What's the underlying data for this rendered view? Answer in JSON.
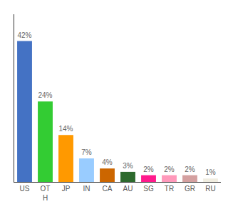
{
  "chart_data": {
    "type": "bar",
    "categories": [
      "US",
      "OT\nH",
      "JP",
      "IN",
      "CA",
      "AU",
      "SG",
      "TR",
      "GR",
      "RU"
    ],
    "values": [
      42,
      24,
      14,
      7,
      4,
      3,
      2,
      2,
      2,
      1
    ],
    "value_labels": [
      "42%",
      "24%",
      "14%",
      "7%",
      "4%",
      "3%",
      "2%",
      "2%",
      "2%",
      "1%"
    ],
    "colors": [
      "#4472c4",
      "#33cc33",
      "#ff9900",
      "#99ccff",
      "#cc6600",
      "#2d6a2d",
      "#ff1a8c",
      "#ff99bb",
      "#d4a0a0",
      "#f0ede0"
    ],
    "ylim": [
      0,
      50
    ],
    "data_labels": true,
    "tick_labels": "x",
    "grid": false
  }
}
